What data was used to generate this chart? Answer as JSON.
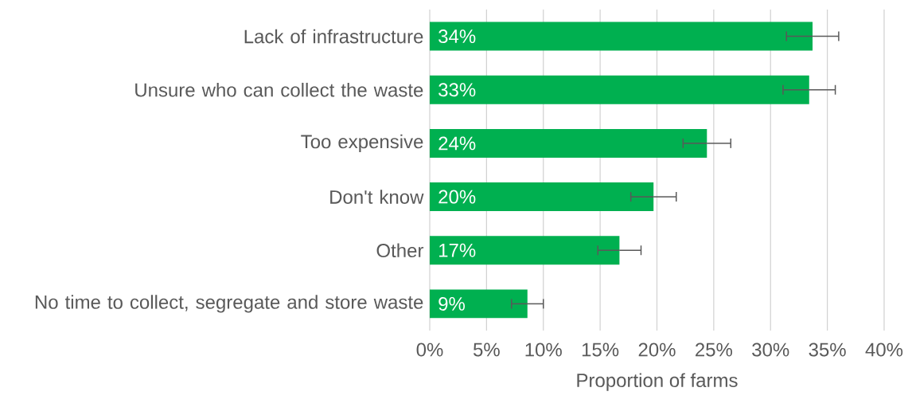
{
  "chart_data": {
    "type": "bar",
    "orientation": "horizontal",
    "categories": [
      "Lack of infrastructure",
      "Unsure who can collect the waste",
      "Too expensive",
      "Don't know",
      "Other",
      "No time to collect, segregate and store waste"
    ],
    "values": [
      33.7,
      33.4,
      24.4,
      19.7,
      16.7,
      8.6
    ],
    "errors": [
      2.3,
      2.3,
      2.1,
      2.0,
      1.9,
      1.4
    ],
    "value_labels": [
      "34%",
      "33%",
      "24%",
      "20%",
      "17%",
      "9%"
    ],
    "color": "#00b050",
    "xlabel": "Proportion of farms",
    "xlim": [
      0,
      40
    ],
    "xticks": [
      {
        "value": 0,
        "label": "0%"
      },
      {
        "value": 5,
        "label": "5%"
      },
      {
        "value": 10,
        "label": "10%"
      },
      {
        "value": 15,
        "label": "15%"
      },
      {
        "value": 20,
        "label": "20%"
      },
      {
        "value": 25,
        "label": "25%"
      },
      {
        "value": 30,
        "label": "30%"
      },
      {
        "value": 35,
        "label": "35%"
      },
      {
        "value": 40,
        "label": "40%"
      }
    ],
    "grid": "x"
  }
}
